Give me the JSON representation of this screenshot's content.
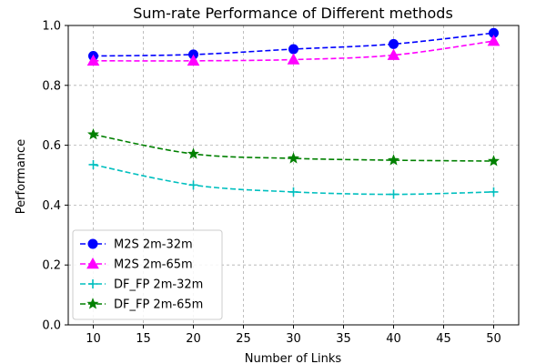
{
  "chart_data": {
    "type": "line",
    "title": "Sum-rate Performance of Different methods",
    "xlabel": "Number of Links",
    "ylabel": "Performance",
    "xlim": [
      7.5,
      52.5
    ],
    "ylim": [
      0.0,
      1.0
    ],
    "xticks": [
      "10",
      "15",
      "20",
      "25",
      "30",
      "35",
      "40",
      "45",
      "50"
    ],
    "yticks": [
      "0.0",
      "0.2",
      "0.4",
      "0.6",
      "0.8",
      "1.0"
    ],
    "grid": true,
    "legend_position": "lower-left",
    "x": [
      10,
      20,
      30,
      40,
      50
    ],
    "series": [
      {
        "name": "M2S 2m-32m",
        "values": [
          0.898,
          0.903,
          0.921,
          0.938,
          0.975
        ],
        "color": "#0000ff",
        "marker": "circle"
      },
      {
        "name": "M2S 2m-65m",
        "values": [
          0.882,
          0.882,
          0.886,
          0.901,
          0.948
        ],
        "color": "#ff00ff",
        "marker": "triangle"
      },
      {
        "name": "DF_FP 2m-32m",
        "values": [
          0.535,
          0.467,
          0.444,
          0.436,
          0.444
        ],
        "color": "#00bfbf",
        "marker": "plus"
      },
      {
        "name": "DF_FP 2m-65m",
        "values": [
          0.636,
          0.571,
          0.556,
          0.55,
          0.547
        ],
        "color": "#008000",
        "marker": "star"
      }
    ]
  }
}
